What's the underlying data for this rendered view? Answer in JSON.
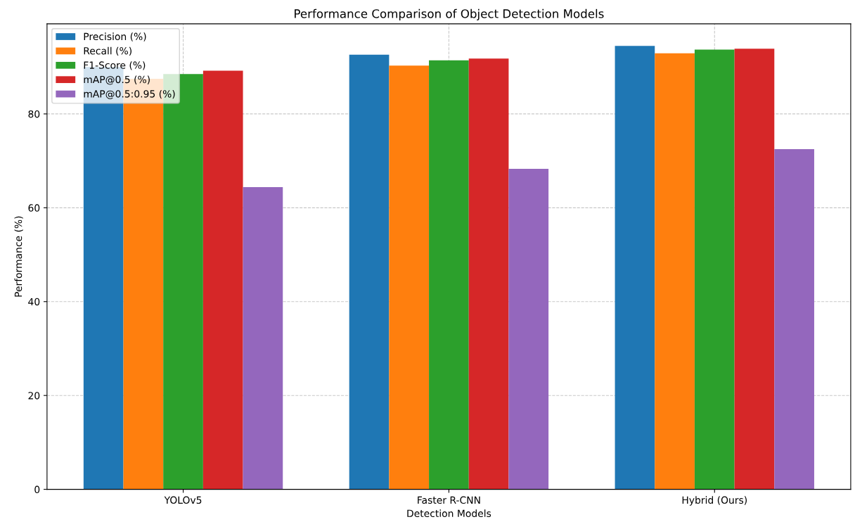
{
  "chart_data": {
    "type": "bar",
    "title": "Performance Comparison of Object Detection Models",
    "xlabel": "Detection Models",
    "ylabel": "Performance (%)",
    "categories": [
      "YOLOv5",
      "Faster R-CNN",
      "Hybrid (Ours)"
    ],
    "series": [
      {
        "name": "Precision (%)",
        "color": "#1f77b4",
        "values": [
          90.0,
          92.6,
          94.5
        ]
      },
      {
        "name": "Recall (%)",
        "color": "#ff7f0e",
        "values": [
          87.5,
          90.3,
          92.9
        ]
      },
      {
        "name": "F1-Score (%)",
        "color": "#2ca02c",
        "values": [
          88.5,
          91.4,
          93.7
        ]
      },
      {
        "name": "mAP@0.5 (%)",
        "color": "#d62728",
        "values": [
          89.2,
          91.8,
          93.9
        ]
      },
      {
        "name": "mAP@0.5:0.95 (%)",
        "color": "#9467bd",
        "values": [
          64.4,
          68.3,
          72.5
        ]
      }
    ],
    "ylim": [
      0,
      99.2
    ],
    "yticks": [
      0,
      20,
      40,
      60,
      80
    ],
    "grid": true,
    "legend": "top left"
  }
}
